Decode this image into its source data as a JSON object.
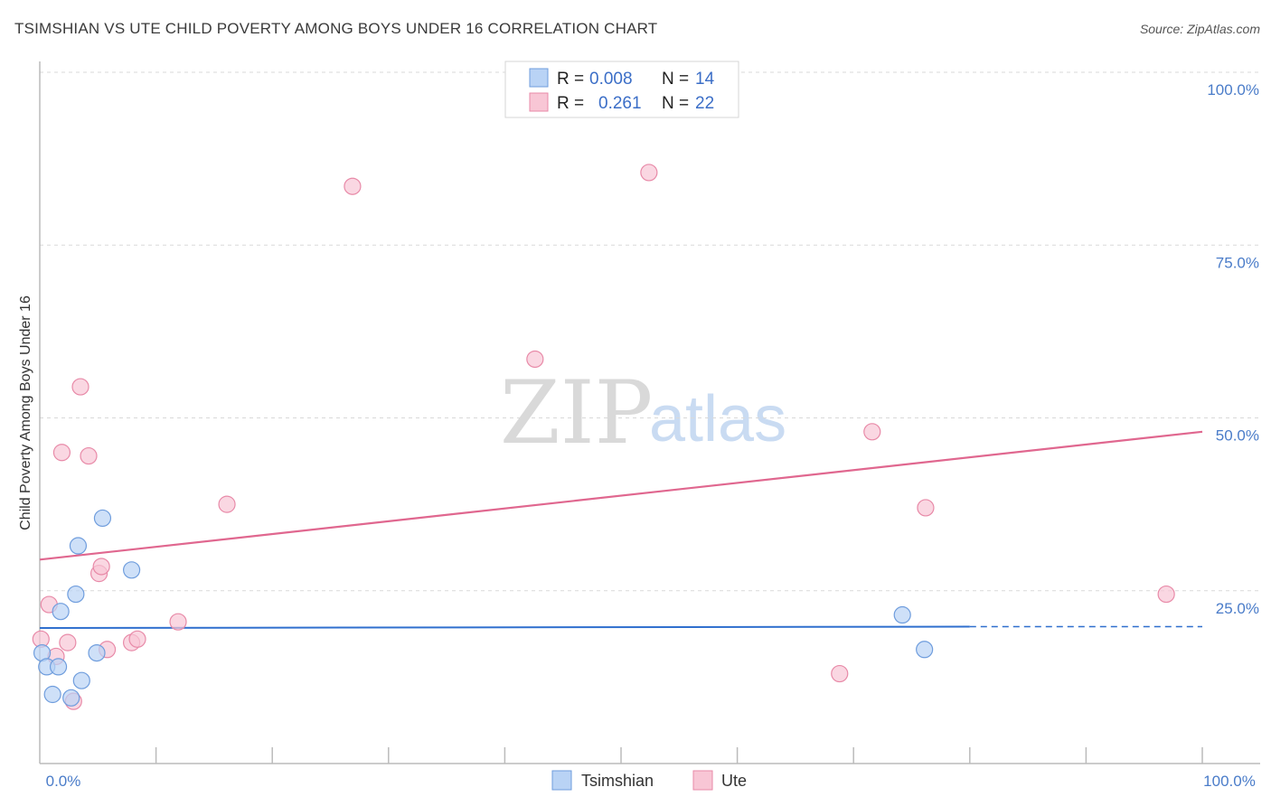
{
  "header": {
    "title": "TSIMSHIAN VS UTE CHILD POVERTY AMONG BOYS UNDER 16 CORRELATION CHART",
    "source": "Source: ZipAtlas.com"
  },
  "watermark": {
    "part1": "ZIP",
    "part2": "atlas"
  },
  "legend_box": {
    "rows": [
      {
        "r_label": "R =",
        "r_value": "0.008",
        "n_label": "N =",
        "n_value": "14"
      },
      {
        "r_label": "R =",
        "r_value": "0.261",
        "n_label": "N =",
        "n_value": "22"
      }
    ]
  },
  "colors": {
    "tsimshian_fill": "#b9d3f5",
    "tsimshian_stroke": "#6f9ddd",
    "tsimshian_line": "#2f6fce",
    "ute_fill": "#f8c6d5",
    "ute_stroke": "#e88aa8",
    "ute_line": "#e0678f",
    "grid": "#d9d9d9",
    "axis": "#bbbbbb"
  },
  "chart_data": {
    "type": "scatter",
    "title": "TSIMSHIAN VS UTE CHILD POVERTY AMONG BOYS UNDER 16 CORRELATION CHART",
    "xlabel": "",
    "ylabel": "Child Poverty Among Boys Under 16",
    "xlim": [
      0,
      100
    ],
    "ylim": [
      0,
      100
    ],
    "x_tick_labels": [
      "0.0%",
      "100.0%"
    ],
    "y_ticks": [
      {
        "value": 100,
        "label": "100.0%"
      },
      {
        "value": 75,
        "label": "75.0%"
      },
      {
        "value": 50,
        "label": "50.0%"
      },
      {
        "value": 25,
        "label": "25.0%"
      }
    ],
    "grid": true,
    "series": [
      {
        "name": "Tsimshian",
        "R": 0.008,
        "N": 14,
        "points": [
          {
            "x": 0.2,
            "y": 16.0
          },
          {
            "x": 0.6,
            "y": 14.0
          },
          {
            "x": 1.1,
            "y": 10.0
          },
          {
            "x": 1.6,
            "y": 14.0
          },
          {
            "x": 1.8,
            "y": 22.0
          },
          {
            "x": 2.7,
            "y": 9.5
          },
          {
            "x": 3.1,
            "y": 24.5
          },
          {
            "x": 3.3,
            "y": 31.5
          },
          {
            "x": 3.6,
            "y": 12.0
          },
          {
            "x": 4.9,
            "y": 16.0
          },
          {
            "x": 5.4,
            "y": 35.5
          },
          {
            "x": 7.9,
            "y": 28.0
          },
          {
            "x": 74.2,
            "y": 21.5
          },
          {
            "x": 76.1,
            "y": 16.5
          }
        ],
        "trend": {
          "x0": 0,
          "y0": 19.6,
          "x1": 80,
          "y1": 19.8,
          "dashed_to": 100
        }
      },
      {
        "name": "Ute",
        "R": 0.261,
        "N": 22,
        "points": [
          {
            "x": 0.1,
            "y": 18.0
          },
          {
            "x": 0.8,
            "y": 23.0
          },
          {
            "x": 1.4,
            "y": 15.5
          },
          {
            "x": 1.9,
            "y": 45.0
          },
          {
            "x": 2.4,
            "y": 17.5
          },
          {
            "x": 2.9,
            "y": 9.0
          },
          {
            "x": 3.5,
            "y": 54.5
          },
          {
            "x": 4.2,
            "y": 44.5
          },
          {
            "x": 5.1,
            "y": 27.5
          },
          {
            "x": 5.3,
            "y": 28.5
          },
          {
            "x": 5.8,
            "y": 16.5
          },
          {
            "x": 7.9,
            "y": 17.5
          },
          {
            "x": 8.4,
            "y": 18.0
          },
          {
            "x": 11.9,
            "y": 20.5
          },
          {
            "x": 16.1,
            "y": 37.5
          },
          {
            "x": 26.9,
            "y": 83.5
          },
          {
            "x": 42.6,
            "y": 58.5
          },
          {
            "x": 52.4,
            "y": 85.5
          },
          {
            "x": 68.8,
            "y": 13.0
          },
          {
            "x": 71.6,
            "y": 48.0
          },
          {
            "x": 76.2,
            "y": 37.0
          },
          {
            "x": 96.9,
            "y": 24.5
          }
        ],
        "trend": {
          "x0": 0,
          "y0": 29.5,
          "x1": 100,
          "y1": 48.0
        }
      }
    ]
  }
}
